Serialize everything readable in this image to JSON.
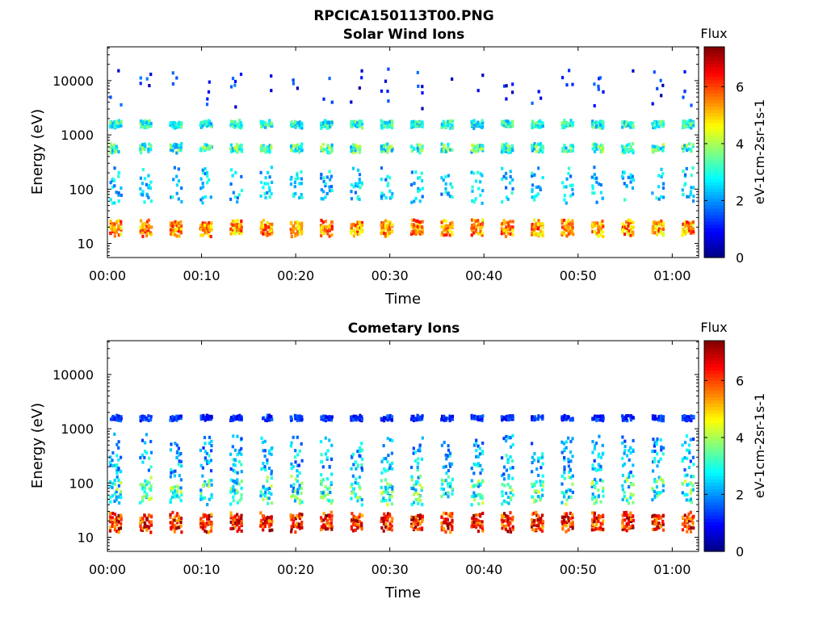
{
  "figure_title": "RPCICA150113T00.PNG",
  "chart_data": [
    {
      "type": "heatmap",
      "title": "Solar Wind Ions",
      "xlabel": "Time",
      "ylabel": "Energy (eV)",
      "x_ticks": [
        "00:00",
        "00:10",
        "00:20",
        "00:30",
        "00:40",
        "00:50",
        "01:00"
      ],
      "x_range_minutes": [
        0,
        62.8
      ],
      "y_scale": "log",
      "y_ticks": [
        "10",
        "100",
        "1000",
        "10000"
      ],
      "y_tick_values": [
        10,
        100,
        1000,
        10000
      ],
      "y_range": [
        5.5,
        42000
      ],
      "colorbar": {
        "title": "Flux",
        "label": "eV-1cm-2sr-1s-1",
        "ticks": [
          "0",
          "2",
          "4",
          "6"
        ],
        "tick_values": [
          0,
          2,
          4,
          6
        ],
        "range": [
          0,
          7.4
        ],
        "colormap": "jet"
      },
      "scan_period_minutes": 3.2,
      "bands": [
        {
          "energy_eV": 20,
          "flux": 5.4,
          "scatter": 0.55,
          "fill": 0.95,
          "spread": 0.25
        },
        {
          "energy_eV": 1600,
          "flux": 3.0,
          "scatter": 0.5,
          "fill": 0.75,
          "spread": 0.12
        },
        {
          "energy_eV": 580,
          "flux": 3.2,
          "scatter": 0.6,
          "fill": 0.55,
          "spread": 0.14
        },
        {
          "energy_eV": 130,
          "flux": 2.4,
          "scatter": 0.4,
          "fill": 0.45,
          "spread": 0.55
        },
        {
          "energy_eV": 8000,
          "flux": 1.1,
          "scatter": 0.4,
          "fill": 0.1,
          "spread": 0.6
        }
      ]
    },
    {
      "type": "heatmap",
      "title": "Cometary Ions",
      "xlabel": "Time",
      "ylabel": "Energy (eV)",
      "x_ticks": [
        "00:00",
        "00:10",
        "00:20",
        "00:30",
        "00:40",
        "00:50",
        "01:00"
      ],
      "x_range_minutes": [
        0,
        62.8
      ],
      "y_scale": "log",
      "y_ticks": [
        "10",
        "100",
        "1000",
        "10000"
      ],
      "y_tick_values": [
        10,
        100,
        1000,
        10000
      ],
      "y_range": [
        5.5,
        42000
      ],
      "colorbar": {
        "title": "Flux",
        "label": "eV-1cm-2sr-1s-1",
        "ticks": [
          "0",
          "2",
          "4",
          "6"
        ],
        "tick_values": [
          0,
          2,
          4,
          6
        ],
        "range": [
          0,
          7.4
        ],
        "colormap": "jet"
      },
      "scan_period_minutes": 3.2,
      "bands": [
        {
          "energy_eV": 20,
          "flux": 6.3,
          "scatter": 0.6,
          "fill": 0.97,
          "spread": 0.3
        },
        {
          "energy_eV": 1600,
          "flux": 1.2,
          "scatter": 0.3,
          "fill": 0.55,
          "spread": 0.08
        },
        {
          "energy_eV": 80,
          "flux": 3.1,
          "scatter": 0.7,
          "fill": 0.65,
          "spread": 0.45
        },
        {
          "energy_eV": 250,
          "flux": 2.3,
          "scatter": 0.5,
          "fill": 0.35,
          "spread": 0.4
        },
        {
          "energy_eV": 550,
          "flux": 2.0,
          "scatter": 0.4,
          "fill": 0.15,
          "spread": 0.3
        }
      ]
    }
  ]
}
